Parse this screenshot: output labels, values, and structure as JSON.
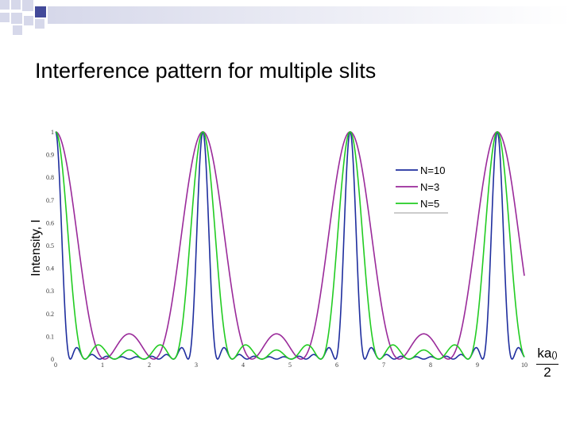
{
  "slide": {
    "title": "Interference pattern for multiple slits"
  },
  "colors": {
    "deco_squares": "#434a9a",
    "deco_bar_start": "#d6d8ea",
    "N10": "#1f2e9e",
    "N3": "#9a2a9a",
    "N5": "#22cc22"
  },
  "chart_data": {
    "type": "line",
    "title": "",
    "ylabel": "Intensity, I",
    "xlabel": {
      "numerator": "ka",
      "symbol": "()",
      "denominator": "2"
    },
    "xlim": [
      0,
      10
    ],
    "ylim": [
      0,
      1
    ],
    "x_ticks": [
      "0",
      "1",
      "2",
      "3",
      "4",
      "5",
      "6",
      "7",
      "8",
      "9",
      "10"
    ],
    "y_ticks": [
      "0",
      "0.1",
      "0.2",
      "0.3",
      "0.4",
      "0.5",
      "0.6",
      "0.7",
      "0.8",
      "0.9",
      "1"
    ],
    "period": 3.1416,
    "grid": false,
    "legend_position": "top-right",
    "series": [
      {
        "name": "N=10",
        "N": 10,
        "color": "#1f2e9e"
      },
      {
        "name": "N=3",
        "N": 3,
        "color": "#9a2a9a"
      },
      {
        "name": "N=5",
        "N": 5,
        "color": "#22cc22"
      }
    ]
  }
}
